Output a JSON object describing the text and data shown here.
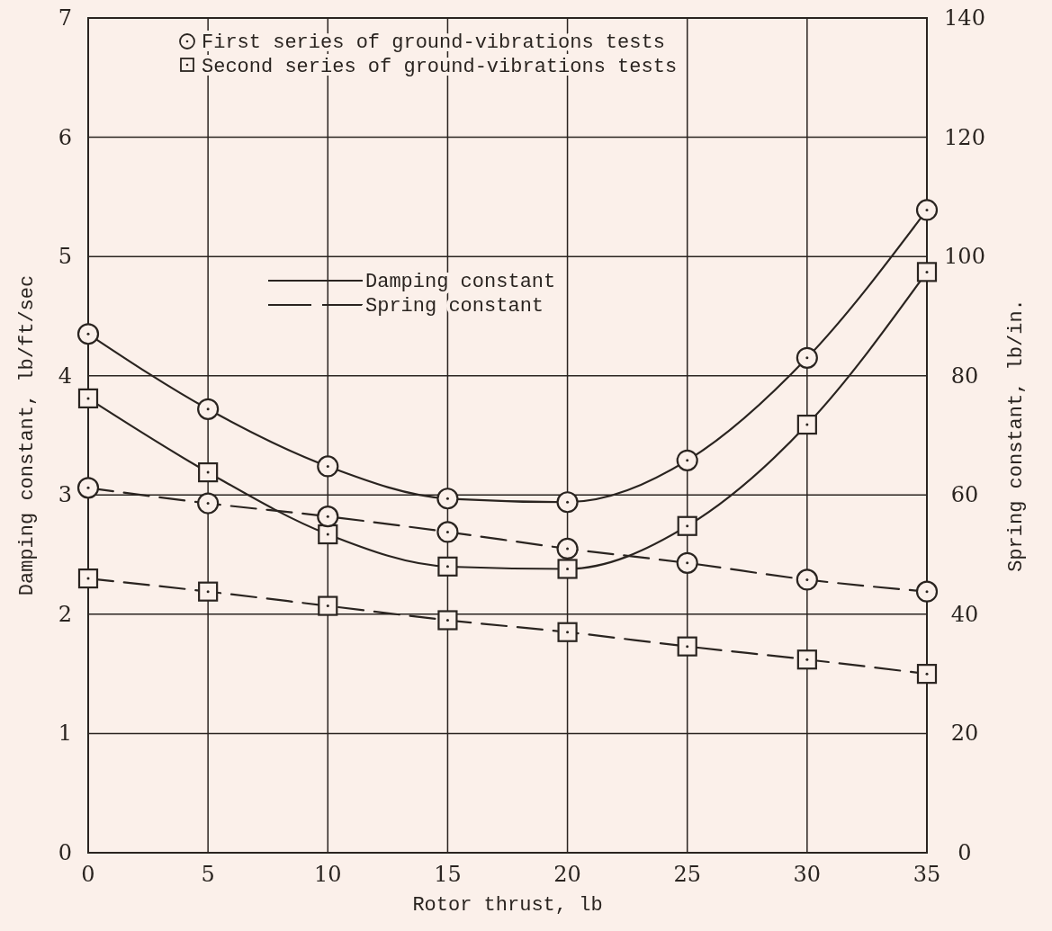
{
  "chart_data": {
    "type": "line",
    "xlabel": "Rotor thrust, lb",
    "ylabel": "Damping constant, lb/ft/sec",
    "y2label": "Spring constant, lb/in.",
    "x": [
      0,
      5,
      10,
      15,
      20,
      25,
      30,
      35
    ],
    "xlim": [
      0,
      35
    ],
    "xticks": [
      0,
      5,
      10,
      15,
      20,
      25,
      30,
      35
    ],
    "ylim": [
      0,
      7
    ],
    "yticks": [
      0,
      1,
      2,
      3,
      4,
      5,
      6,
      7
    ],
    "y2lim": [
      0,
      140
    ],
    "y2ticks": [
      0,
      20,
      40,
      60,
      80,
      100,
      120,
      140
    ],
    "grid": true,
    "series": [
      {
        "color": "#2a2420",
        "marker": "circle",
        "line_style": "solid",
        "values": [
          4.35,
          3.72,
          3.24,
          2.97,
          2.94,
          3.29,
          4.15,
          5.39
        ]
      },
      {
        "color": "#2a2420",
        "marker": "square",
        "line_style": "solid",
        "values": [
          3.81,
          3.19,
          2.67,
          2.4,
          2.38,
          2.74,
          3.59,
          4.87
        ]
      },
      {
        "color": "#2a2420",
        "marker": "circle",
        "line_style": "dashed",
        "axis": "y2",
        "values": [
          61.2,
          58.6,
          56.4,
          53.8,
          51,
          48.6,
          45.8,
          43.8
        ]
      },
      {
        "color": "#2a2420",
        "marker": "square",
        "line_style": "dashed",
        "axis": "y2",
        "values": [
          46,
          43.8,
          41.4,
          39,
          37,
          34.6,
          32.4,
          30
        ]
      }
    ],
    "annotations": [
      "First series of ground-vibrations tests",
      "Second series of ground-vibrations tests",
      "Damping constant",
      "Spring constant"
    ]
  }
}
